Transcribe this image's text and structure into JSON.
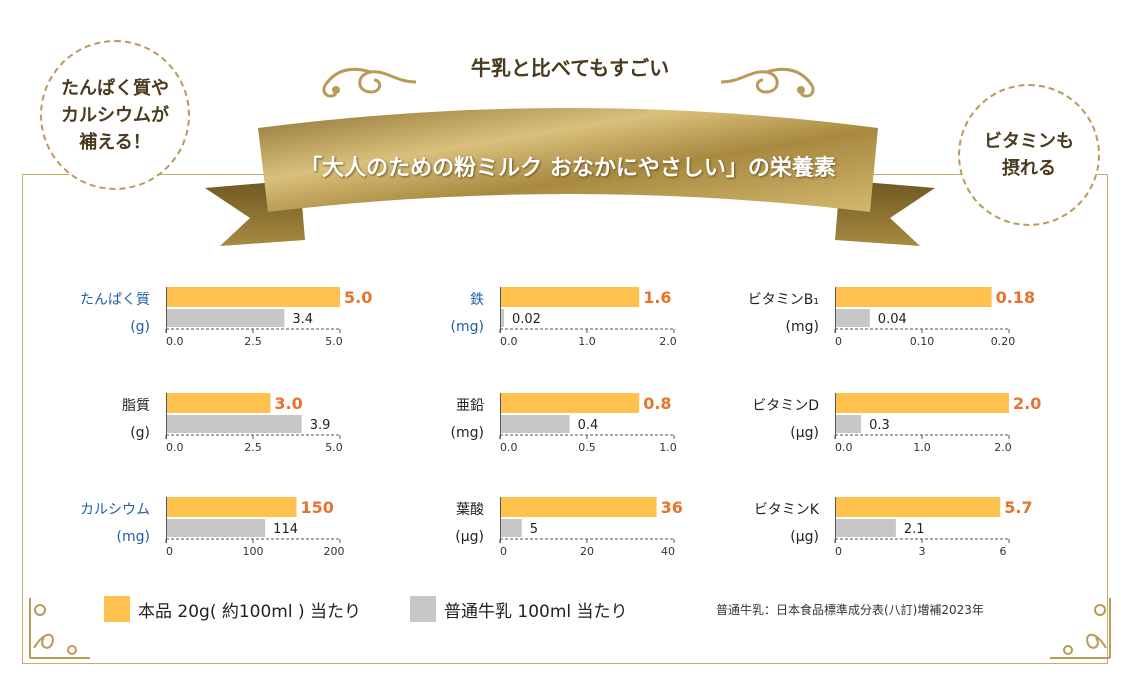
{
  "badges": {
    "left": "たんぱく質や\nカルシウムが\n補える！",
    "right": "ビタミンも\n摂れる"
  },
  "headline": "牛乳と比べてもすごい",
  "ribbon_title": "「大人のための粉ミルク おなかにやさしい」の栄養素",
  "colors": {
    "product": "#ffc14d",
    "milk": "#c8c6c7",
    "product_value": "#e8732a",
    "accent": "#c7ad6a",
    "blue_label": "#1f5fa6"
  },
  "legend": {
    "product": "本品 20g( 約100ml ) 当たり",
    "milk": "普通牛乳 100ml 当たり"
  },
  "source_note": "普通牛乳：日本食品標準成分表(八訂)増補2023年",
  "chart_data": [
    {
      "type": "bar",
      "name": "たんぱく質",
      "unit": "(g)",
      "blue": true,
      "series": [
        {
          "name": "本品 20g( 約100ml ) 当たり",
          "values": [
            5.0
          ]
        },
        {
          "name": "普通牛乳 100ml 当たり",
          "values": [
            3.4
          ]
        }
      ],
      "value_labels": [
        "5.0",
        "3.4"
      ],
      "xlim": [
        0,
        5.0
      ],
      "ticks": [
        "0.0",
        "2.5",
        "5.0"
      ]
    },
    {
      "type": "bar",
      "name": "鉄",
      "unit": "(mg)",
      "blue": true,
      "series": [
        {
          "name": "本品 20g( 約100ml ) 当たり",
          "values": [
            1.6
          ]
        },
        {
          "name": "普通牛乳 100ml 当たり",
          "values": [
            0.02
          ]
        }
      ],
      "value_labels": [
        "1.6",
        "0.02"
      ],
      "xlim": [
        0,
        2.0
      ],
      "ticks": [
        "0.0",
        "1.0",
        "2.0"
      ]
    },
    {
      "type": "bar",
      "name": "ビタミンB₁",
      "unit": "(mg)",
      "blue": false,
      "series": [
        {
          "name": "本品 20g( 約100ml ) 当たり",
          "values": [
            0.18
          ]
        },
        {
          "name": "普通牛乳 100ml 当たり",
          "values": [
            0.04
          ]
        }
      ],
      "value_labels": [
        "0.18",
        "0.04"
      ],
      "xlim": [
        0,
        0.2
      ],
      "ticks": [
        "0",
        "0.10",
        "0.20"
      ]
    },
    {
      "type": "bar",
      "name": "脂質",
      "unit": "(g)",
      "blue": false,
      "series": [
        {
          "name": "本品 20g( 約100ml ) 当たり",
          "values": [
            3.0
          ]
        },
        {
          "name": "普通牛乳 100ml 当たり",
          "values": [
            3.9
          ]
        }
      ],
      "value_labels": [
        "3.0",
        "3.9"
      ],
      "xlim": [
        0,
        5.0
      ],
      "ticks": [
        "0.0",
        "2.5",
        "5.0"
      ]
    },
    {
      "type": "bar",
      "name": "亜鉛",
      "unit": "(mg)",
      "blue": false,
      "series": [
        {
          "name": "本品 20g( 約100ml ) 当たり",
          "values": [
            0.8
          ]
        },
        {
          "name": "普通牛乳 100ml 当たり",
          "values": [
            0.4
          ]
        }
      ],
      "value_labels": [
        "0.8",
        "0.4"
      ],
      "xlim": [
        0,
        1.0
      ],
      "ticks": [
        "0.0",
        "0.5",
        "1.0"
      ]
    },
    {
      "type": "bar",
      "name": "ビタミンD",
      "unit": "(μg)",
      "blue": false,
      "series": [
        {
          "name": "本品 20g( 約100ml ) 当たり",
          "values": [
            2.0
          ]
        },
        {
          "name": "普通牛乳 100ml 当たり",
          "values": [
            0.3
          ]
        }
      ],
      "value_labels": [
        "2.0",
        "0.3"
      ],
      "xlim": [
        0,
        2.0
      ],
      "ticks": [
        "0.0",
        "1.0",
        "2.0"
      ]
    },
    {
      "type": "bar",
      "name": "カルシウム",
      "unit": "(mg)",
      "blue": true,
      "series": [
        {
          "name": "本品 20g( 約100ml ) 当たり",
          "values": [
            150
          ]
        },
        {
          "name": "普通牛乳 100ml 当たり",
          "values": [
            114
          ]
        }
      ],
      "value_labels": [
        "150",
        "114"
      ],
      "xlim": [
        0,
        200
      ],
      "ticks": [
        "0",
        "100",
        "200"
      ]
    },
    {
      "type": "bar",
      "name": "葉酸",
      "unit": "(μg)",
      "blue": false,
      "series": [
        {
          "name": "本品 20g( 約100ml ) 当たり",
          "values": [
            36
          ]
        },
        {
          "name": "普通牛乳 100ml 当たり",
          "values": [
            5
          ]
        }
      ],
      "value_labels": [
        "36",
        "5"
      ],
      "xlim": [
        0,
        40
      ],
      "ticks": [
        "0",
        "20",
        "40"
      ]
    },
    {
      "type": "bar",
      "name": "ビタミンK",
      "unit": "(μg)",
      "blue": false,
      "series": [
        {
          "name": "本品 20g( 約100ml ) 当たり",
          "values": [
            5.7
          ]
        },
        {
          "name": "普通牛乳 100ml 当たり",
          "values": [
            2.1
          ]
        }
      ],
      "value_labels": [
        "5.7",
        "2.1"
      ],
      "xlim": [
        0,
        6
      ],
      "ticks": [
        "0",
        "3",
        "6"
      ]
    }
  ]
}
